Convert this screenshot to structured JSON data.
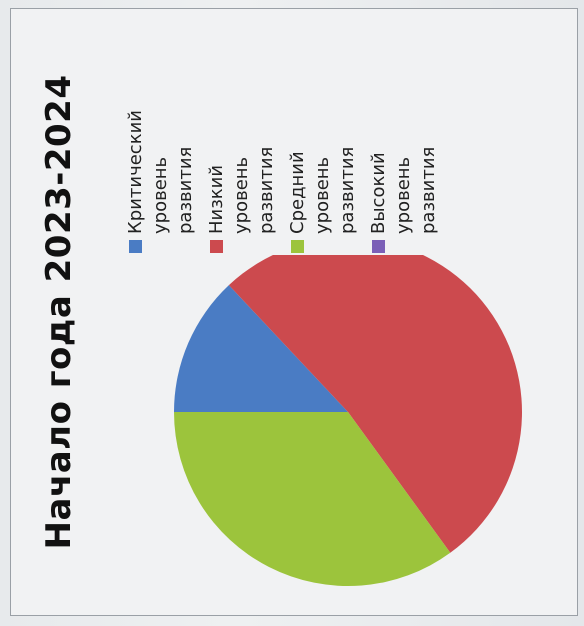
{
  "chart_data": {
    "type": "pie",
    "title": "Начало года 2023-2024",
    "slices": [
      {
        "label": "Критический уровень развития",
        "value": 13,
        "color": "#4a7cc4"
      },
      {
        "label": "Низкий уровень развития",
        "value": 52,
        "color": "#cc4a4e"
      },
      {
        "label": "Средний уровень развития",
        "value": 35,
        "color": "#9cc43c"
      },
      {
        "label": "Высокий уровень развития",
        "value": 0,
        "color": "#7b5fb7"
      }
    ],
    "legend_position": "right"
  }
}
